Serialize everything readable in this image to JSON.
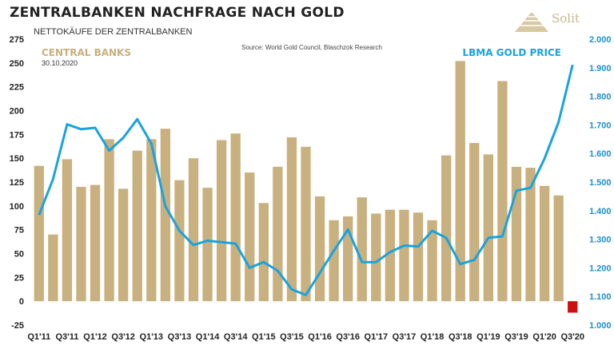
{
  "header": {
    "title": "ZENTRALBANKEN NACHFRAGE NACH GOLD",
    "subtitle": "NETTOKÄUFE DER ZENTRALBANKEN",
    "logo_text": "Solit"
  },
  "chart_data": {
    "type": "bar",
    "source_note": "Source: World Gold Council, Blaschzok Research",
    "date_label": "30.10.2020",
    "categories": [
      "Q1'11",
      "Q2'11",
      "Q3'11",
      "Q4'11",
      "Q1'12",
      "Q2'12",
      "Q3'12",
      "Q4'12",
      "Q1'13",
      "Q2'13",
      "Q3'13",
      "Q4'13",
      "Q1'14",
      "Q2'14",
      "Q3'14",
      "Q4'14",
      "Q1'15",
      "Q2'15",
      "Q3'15",
      "Q4'15",
      "Q1'16",
      "Q2'16",
      "Q3'16",
      "Q4'16",
      "Q1'17",
      "Q2'17",
      "Q3'17",
      "Q4'17",
      "Q1'18",
      "Q2'18",
      "Q3'18",
      "Q4'18",
      "Q1'19",
      "Q2'19",
      "Q3'19",
      "Q4'19",
      "Q1'20",
      "Q2'20",
      "Q3'20"
    ],
    "x_tick_labels": [
      "Q1'11",
      "Q3'11",
      "Q1'12",
      "Q3'12",
      "Q1'13",
      "Q3'13",
      "Q1'14",
      "Q3'14",
      "Q1'15",
      "Q3'15",
      "Q1'16",
      "Q3'16",
      "Q1'17",
      "Q3'17",
      "Q1'18",
      "Q3'18",
      "Q1'19",
      "Q3'19",
      "Q1'20",
      "Q3'20"
    ],
    "series": [
      {
        "name": "CENTRAL BANKS",
        "axis": "left",
        "color": "#c8b07f",
        "negative_color": "#cc1010",
        "values": [
          142,
          70,
          149,
          120,
          122,
          170,
          118,
          158,
          170,
          181,
          127,
          150,
          119,
          169,
          176,
          135,
          103,
          141,
          172,
          162,
          110,
          85,
          89,
          109,
          92,
          96,
          96,
          93,
          85,
          153,
          252,
          166,
          154,
          231,
          141,
          140,
          121,
          111,
          -12
        ]
      },
      {
        "name": "LBMA GOLD PRICE",
        "axis": "right",
        "color": "#1aa3dd",
        "values": [
          1385,
          1510,
          1702,
          1685,
          1690,
          1610,
          1655,
          1720,
          1635,
          1415,
          1330,
          1280,
          1295,
          1290,
          1285,
          1200,
          1220,
          1190,
          1125,
          1105,
          1183,
          1260,
          1334,
          1220,
          1220,
          1255,
          1278,
          1275,
          1330,
          1305,
          1213,
          1228,
          1305,
          1310,
          1470,
          1480,
          1582,
          1710,
          1910
        ]
      }
    ],
    "y_left": {
      "ylim": [
        -25,
        275
      ],
      "ticks": [
        "-25",
        "0",
        "25",
        "50",
        "75",
        "100",
        "125",
        "150",
        "175",
        "200",
        "225",
        "250",
        "275"
      ]
    },
    "y_right": {
      "ylim": [
        1000,
        2000
      ],
      "ticks": [
        "1.000",
        "1.100",
        "1.200",
        "1.300",
        "1.400",
        "1.500",
        "1.600",
        "1.700",
        "1.800",
        "1.900",
        "2.000"
      ]
    },
    "grid": false,
    "legend": "top-left and top-right labels"
  }
}
